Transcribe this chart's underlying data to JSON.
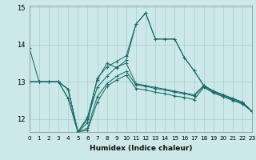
{
  "xlabel": "Humidex (Indice chaleur)",
  "bg_color": "#cde8e8",
  "grid_color": "#a8cccc",
  "line_color": "#1a6b6b",
  "xmin": 0,
  "xmax": 23,
  "ymin": 11.65,
  "ymax": 15.05,
  "yticks": [
    12,
    13,
    14,
    15
  ],
  "xticks": [
    0,
    1,
    2,
    3,
    4,
    5,
    6,
    7,
    8,
    9,
    10,
    11,
    12,
    13,
    14,
    15,
    16,
    17,
    18,
    19,
    20,
    21,
    22,
    23
  ],
  "lines": [
    [
      13.9,
      13.0,
      13.0,
      13.0,
      12.8,
      11.65,
      11.9,
      13.1,
      13.4,
      13.55,
      13.7,
      14.55,
      14.85,
      14.15,
      14.15,
      14.15,
      13.65,
      13.3,
      12.9,
      12.75,
      12.65,
      12.55,
      12.45,
      12.2
    ],
    [
      13.0,
      13.0,
      13.0,
      13.0,
      12.8,
      11.65,
      12.05,
      13.05,
      13.5,
      13.38,
      13.58,
      14.55,
      14.85,
      14.15,
      14.15,
      14.15,
      13.65,
      13.3,
      12.9,
      12.75,
      12.65,
      12.55,
      12.45,
      12.2
    ],
    [
      13.0,
      13.0,
      13.0,
      13.0,
      12.8,
      11.65,
      12.0,
      12.85,
      13.15,
      13.4,
      13.5,
      12.95,
      12.9,
      12.85,
      12.8,
      12.75,
      12.7,
      12.65,
      12.9,
      12.75,
      12.65,
      12.55,
      12.45,
      12.2
    ],
    [
      13.0,
      13.0,
      13.0,
      13.0,
      12.55,
      11.65,
      11.75,
      12.6,
      12.95,
      13.15,
      13.28,
      12.92,
      12.88,
      12.82,
      12.78,
      12.72,
      12.68,
      12.62,
      12.88,
      12.72,
      12.62,
      12.52,
      12.42,
      12.2
    ],
    [
      13.0,
      13.0,
      13.0,
      13.0,
      12.55,
      11.65,
      11.7,
      12.45,
      12.88,
      13.05,
      13.18,
      12.82,
      12.78,
      12.72,
      12.68,
      12.62,
      12.58,
      12.52,
      12.85,
      12.7,
      12.6,
      12.5,
      12.4,
      12.2
    ]
  ]
}
